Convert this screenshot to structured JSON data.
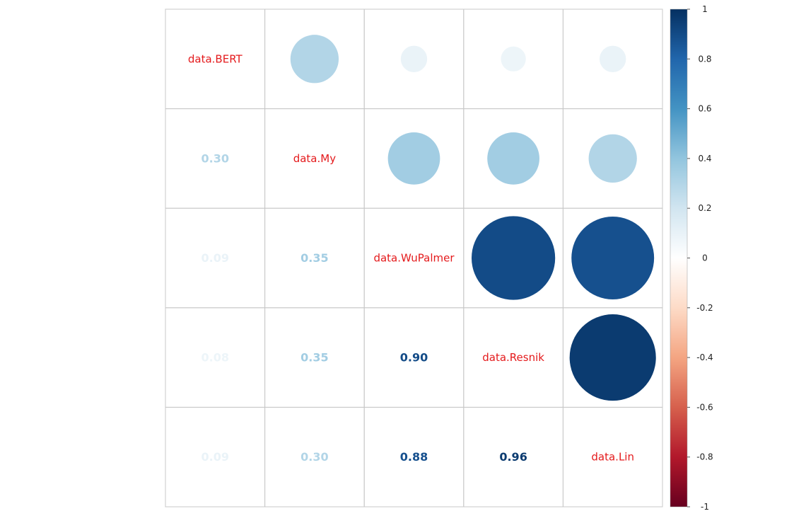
{
  "chart_data": {
    "type": "heatmap",
    "variables": [
      "data.BERT",
      "data.My",
      "data.WuPalmer",
      "data.Resnik",
      "data.Lin"
    ],
    "matrix": [
      [
        1.0,
        0.3,
        0.09,
        0.08,
        0.09
      ],
      [
        0.3,
        1.0,
        0.35,
        0.35,
        0.3
      ],
      [
        0.09,
        0.35,
        1.0,
        0.9,
        0.88
      ],
      [
        0.08,
        0.35,
        0.9,
        1.0,
        0.96
      ],
      [
        0.09,
        0.3,
        0.88,
        0.96,
        1.0
      ]
    ],
    "lower_labels": [
      {
        "row": 1,
        "col": 0,
        "text": "0.30"
      },
      {
        "row": 2,
        "col": 0,
        "text": "0.09"
      },
      {
        "row": 2,
        "col": 1,
        "text": "0.35"
      },
      {
        "row": 3,
        "col": 0,
        "text": "0.08"
      },
      {
        "row": 3,
        "col": 1,
        "text": "0.35"
      },
      {
        "row": 3,
        "col": 2,
        "text": "0.90"
      },
      {
        "row": 4,
        "col": 0,
        "text": "0.09"
      },
      {
        "row": 4,
        "col": 1,
        "text": "0.30"
      },
      {
        "row": 4,
        "col": 2,
        "text": "0.88"
      },
      {
        "row": 4,
        "col": 3,
        "text": "0.96"
      }
    ],
    "upper_display": "circle",
    "lower_display": "number",
    "diagonal": "variable-names",
    "diagonal_label_color": "#e41a1c",
    "color_scale": {
      "range": [
        -1,
        1
      ],
      "ticks": [
        "1",
        "0.8",
        "0.6",
        "0.4",
        "0.2",
        "0",
        "-0.2",
        "-0.4",
        "-0.6",
        "-0.8",
        "-1"
      ],
      "colors": [
        "#67001f",
        "#b2182b",
        "#d6604d",
        "#f4a582",
        "#fddbc7",
        "#ffffff",
        "#d1e5f0",
        "#92c5de",
        "#4393c3",
        "#2166ac",
        "#053061"
      ]
    },
    "legend_placement": "right",
    "grid": true
  }
}
